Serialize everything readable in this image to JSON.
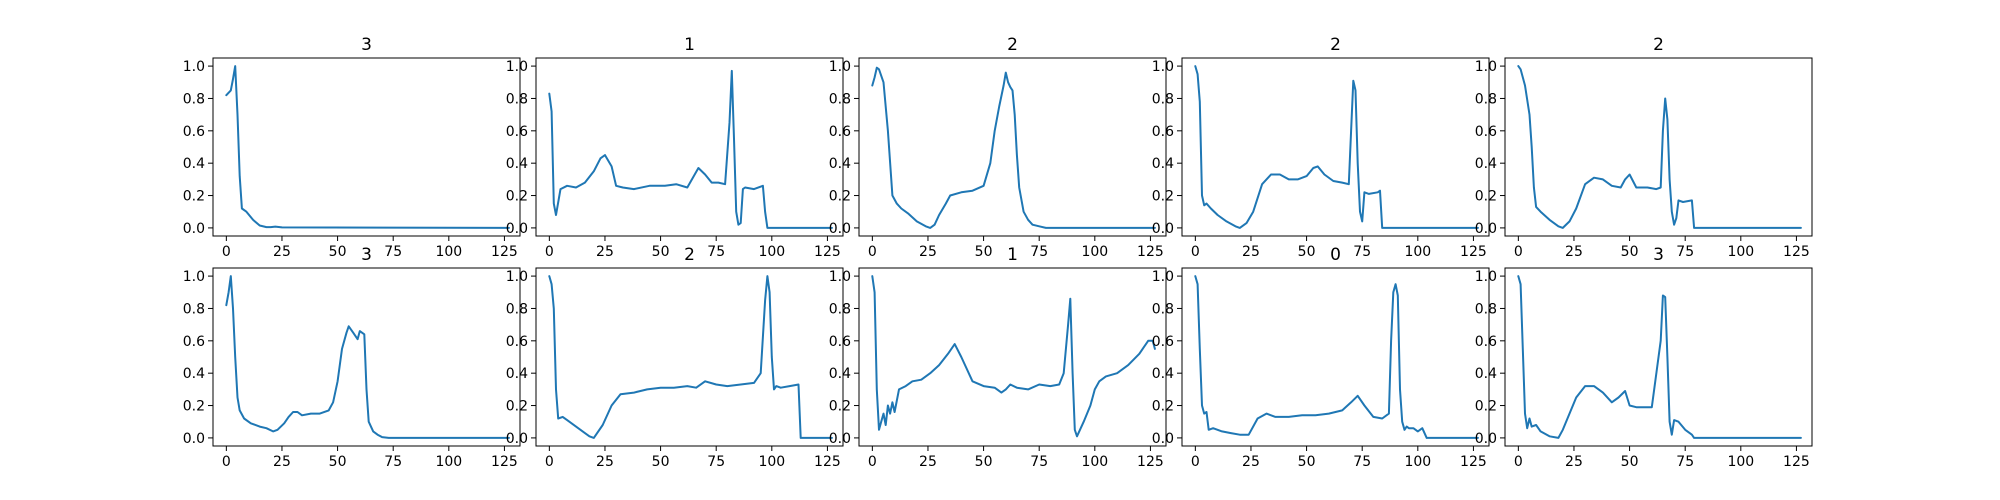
{
  "figure": {
    "background": "#ffffff",
    "line_color": "#1f77b4"
  },
  "chart_data": [
    {
      "type": "line",
      "title": "3",
      "xlabel": "",
      "ylabel": "",
      "xlim": [
        -6,
        132
      ],
      "ylim": [
        -0.05,
        1.05
      ],
      "xticks": [
        0,
        25,
        50,
        75,
        100,
        125
      ],
      "yticks": [
        0.0,
        0.2,
        0.4,
        0.6,
        0.8,
        1.0
      ],
      "series": [
        {
          "x": [
            0,
            2,
            3,
            4,
            5,
            6,
            7,
            9,
            12,
            15,
            18,
            20,
            22,
            25,
            127
          ],
          "y": [
            0.82,
            0.85,
            0.92,
            1.0,
            0.7,
            0.32,
            0.12,
            0.1,
            0.05,
            0.015,
            0.005,
            0.005,
            0.008,
            0.003,
            0.0
          ]
        }
      ]
    },
    {
      "type": "line",
      "title": "1",
      "xlabel": "",
      "ylabel": "",
      "xlim": [
        -6,
        132
      ],
      "ylim": [
        -0.05,
        1.05
      ],
      "xticks": [
        0,
        25,
        50,
        75,
        100,
        125
      ],
      "yticks": [
        0.0,
        0.2,
        0.4,
        0.6,
        0.8,
        1.0
      ],
      "series": [
        {
          "x": [
            0,
            1,
            2,
            3,
            5,
            8,
            12,
            16,
            20,
            23,
            25,
            28,
            30,
            33,
            38,
            45,
            52,
            57,
            62,
            67,
            70,
            73,
            76,
            79,
            81,
            82,
            83,
            84,
            85,
            86,
            87,
            88,
            92,
            96,
            97,
            98,
            100,
            127
          ],
          "y": [
            0.83,
            0.72,
            0.15,
            0.08,
            0.24,
            0.26,
            0.25,
            0.28,
            0.35,
            0.43,
            0.45,
            0.38,
            0.26,
            0.25,
            0.24,
            0.26,
            0.26,
            0.27,
            0.25,
            0.37,
            0.33,
            0.28,
            0.28,
            0.27,
            0.65,
            0.97,
            0.55,
            0.1,
            0.02,
            0.03,
            0.24,
            0.25,
            0.24,
            0.26,
            0.1,
            0.0,
            0.0,
            0.0
          ]
        }
      ]
    },
    {
      "type": "line",
      "title": "2",
      "xlabel": "",
      "ylabel": "",
      "xlim": [
        -6,
        132
      ],
      "ylim": [
        -0.05,
        1.05
      ],
      "xticks": [
        0,
        25,
        50,
        75,
        100,
        125
      ],
      "yticks": [
        0.0,
        0.2,
        0.4,
        0.6,
        0.8,
        1.0
      ],
      "series": [
        {
          "x": [
            0,
            1,
            2,
            3,
            5,
            7,
            9,
            11,
            13,
            16,
            20,
            24,
            26,
            28,
            30,
            33,
            35,
            40,
            45,
            50,
            53,
            55,
            57,
            59,
            60,
            61,
            62,
            63,
            64,
            65,
            66,
            68,
            70,
            72,
            75,
            78,
            127
          ],
          "y": [
            0.88,
            0.93,
            0.99,
            0.98,
            0.9,
            0.6,
            0.2,
            0.15,
            0.12,
            0.09,
            0.04,
            0.01,
            0.0,
            0.02,
            0.08,
            0.15,
            0.2,
            0.22,
            0.23,
            0.26,
            0.4,
            0.6,
            0.75,
            0.88,
            0.96,
            0.9,
            0.87,
            0.85,
            0.7,
            0.45,
            0.25,
            0.1,
            0.05,
            0.02,
            0.01,
            0.0,
            0.0
          ]
        }
      ]
    },
    {
      "type": "line",
      "title": "2",
      "xlabel": "",
      "ylabel": "",
      "xlim": [
        -6,
        132
      ],
      "ylim": [
        -0.05,
        1.05
      ],
      "xticks": [
        0,
        25,
        50,
        75,
        100,
        125
      ],
      "yticks": [
        0.0,
        0.2,
        0.4,
        0.6,
        0.8,
        1.0
      ],
      "series": [
        {
          "x": [
            0,
            1,
            2,
            3,
            4,
            5,
            7,
            10,
            14,
            18,
            20,
            23,
            26,
            30,
            34,
            38,
            42,
            46,
            50,
            53,
            55,
            58,
            62,
            66,
            69,
            70,
            71,
            72,
            73,
            74,
            75,
            76,
            78,
            82,
            83,
            84,
            85,
            127
          ],
          "y": [
            1.0,
            0.95,
            0.78,
            0.2,
            0.14,
            0.15,
            0.12,
            0.08,
            0.04,
            0.01,
            0.0,
            0.03,
            0.1,
            0.27,
            0.33,
            0.33,
            0.3,
            0.3,
            0.32,
            0.37,
            0.38,
            0.33,
            0.29,
            0.28,
            0.27,
            0.6,
            0.91,
            0.85,
            0.4,
            0.1,
            0.04,
            0.22,
            0.21,
            0.22,
            0.23,
            0.0,
            0.0,
            0.0
          ]
        }
      ]
    },
    {
      "type": "line",
      "title": "2",
      "xlabel": "",
      "ylabel": "",
      "xlim": [
        -6,
        132
      ],
      "ylim": [
        -0.05,
        1.05
      ],
      "xticks": [
        0,
        25,
        50,
        75,
        100,
        125
      ],
      "yticks": [
        0.0,
        0.2,
        0.4,
        0.6,
        0.8,
        1.0
      ],
      "series": [
        {
          "x": [
            0,
            1,
            3,
            5,
            6,
            7,
            8,
            10,
            14,
            18,
            20,
            23,
            26,
            30,
            34,
            38,
            42,
            46,
            48,
            50,
            53,
            58,
            62,
            64,
            65,
            66,
            67,
            68,
            69,
            70,
            71,
            72,
            74,
            78,
            79,
            80,
            127
          ],
          "y": [
            1.0,
            0.98,
            0.88,
            0.7,
            0.5,
            0.25,
            0.13,
            0.1,
            0.05,
            0.01,
            0.0,
            0.04,
            0.12,
            0.27,
            0.31,
            0.3,
            0.26,
            0.25,
            0.3,
            0.33,
            0.25,
            0.25,
            0.24,
            0.25,
            0.6,
            0.8,
            0.67,
            0.3,
            0.1,
            0.02,
            0.06,
            0.17,
            0.16,
            0.17,
            0.0,
            0.0,
            0.0
          ]
        }
      ]
    },
    {
      "type": "line",
      "title": "3",
      "xlabel": "",
      "ylabel": "",
      "xlim": [
        -6,
        132
      ],
      "ylim": [
        -0.05,
        1.05
      ],
      "xticks": [
        0,
        25,
        50,
        75,
        100,
        125
      ],
      "yticks": [
        0.0,
        0.2,
        0.4,
        0.6,
        0.8,
        1.0
      ],
      "series": [
        {
          "x": [
            0,
            1,
            2,
            3,
            4,
            5,
            6,
            8,
            11,
            15,
            18,
            21,
            23,
            26,
            28,
            30,
            32,
            34,
            38,
            42,
            46,
            48,
            50,
            52,
            54,
            55,
            57,
            59,
            60,
            62,
            63,
            64,
            66,
            68,
            70,
            73,
            127
          ],
          "y": [
            0.82,
            0.9,
            1.0,
            0.8,
            0.5,
            0.25,
            0.17,
            0.12,
            0.09,
            0.07,
            0.06,
            0.04,
            0.05,
            0.09,
            0.13,
            0.16,
            0.16,
            0.14,
            0.15,
            0.15,
            0.17,
            0.22,
            0.35,
            0.55,
            0.65,
            0.69,
            0.65,
            0.61,
            0.66,
            0.64,
            0.3,
            0.1,
            0.04,
            0.02,
            0.005,
            0.0,
            0.0
          ]
        }
      ]
    },
    {
      "type": "line",
      "title": "2",
      "xlabel": "",
      "ylabel": "",
      "xlim": [
        -6,
        132
      ],
      "ylim": [
        -0.05,
        1.05
      ],
      "xticks": [
        0,
        25,
        50,
        75,
        100,
        125
      ],
      "yticks": [
        0.0,
        0.2,
        0.4,
        0.6,
        0.8,
        1.0
      ],
      "series": [
        {
          "x": [
            0,
            1,
            2,
            3,
            4,
            6,
            8,
            12,
            16,
            18,
            20,
            24,
            28,
            32,
            38,
            44,
            50,
            56,
            62,
            66,
            70,
            75,
            80,
            86,
            92,
            95,
            97,
            98,
            99,
            100,
            101,
            102,
            104,
            108,
            112,
            113,
            114,
            127
          ],
          "y": [
            1.0,
            0.95,
            0.8,
            0.3,
            0.12,
            0.13,
            0.11,
            0.07,
            0.03,
            0.01,
            0.0,
            0.08,
            0.2,
            0.27,
            0.28,
            0.3,
            0.31,
            0.31,
            0.32,
            0.31,
            0.35,
            0.33,
            0.32,
            0.33,
            0.34,
            0.4,
            0.85,
            1.0,
            0.9,
            0.5,
            0.3,
            0.32,
            0.31,
            0.32,
            0.33,
            0.0,
            0.0,
            0.0
          ]
        }
      ]
    },
    {
      "type": "line",
      "title": "1",
      "xlabel": "",
      "ylabel": "",
      "xlim": [
        -6,
        132
      ],
      "ylim": [
        -0.05,
        1.05
      ],
      "xticks": [
        0,
        25,
        50,
        75,
        100,
        125
      ],
      "yticks": [
        0.0,
        0.2,
        0.4,
        0.6,
        0.8,
        1.0
      ],
      "series": [
        {
          "x": [
            0,
            1,
            2,
            3,
            4,
            5,
            6,
            7,
            8,
            9,
            10,
            12,
            15,
            18,
            22,
            26,
            30,
            34,
            37,
            40,
            45,
            50,
            55,
            58,
            60,
            62,
            65,
            70,
            75,
            80,
            84,
            86,
            88,
            89,
            90,
            91,
            92,
            95,
            98,
            100,
            102,
            105,
            110,
            115,
            120,
            124,
            126,
            127
          ],
          "y": [
            1.0,
            0.9,
            0.3,
            0.05,
            0.1,
            0.15,
            0.08,
            0.2,
            0.15,
            0.22,
            0.16,
            0.3,
            0.32,
            0.35,
            0.36,
            0.4,
            0.45,
            0.52,
            0.58,
            0.5,
            0.35,
            0.32,
            0.31,
            0.28,
            0.3,
            0.33,
            0.31,
            0.3,
            0.33,
            0.32,
            0.33,
            0.4,
            0.7,
            0.86,
            0.4,
            0.05,
            0.01,
            0.1,
            0.2,
            0.3,
            0.35,
            0.38,
            0.4,
            0.45,
            0.52,
            0.6,
            0.6,
            0.55
          ]
        }
      ]
    },
    {
      "type": "line",
      "title": "0",
      "xlabel": "",
      "ylabel": "",
      "xlim": [
        -6,
        132
      ],
      "ylim": [
        -0.05,
        1.05
      ],
      "xticks": [
        0,
        25,
        50,
        75,
        100,
        125
      ],
      "yticks": [
        0.0,
        0.2,
        0.4,
        0.6,
        0.8,
        1.0
      ],
      "series": [
        {
          "x": [
            0,
            1,
            2,
            3,
            4,
            5,
            6,
            8,
            12,
            16,
            20,
            24,
            28,
            32,
            36,
            42,
            48,
            54,
            60,
            66,
            70,
            73,
            76,
            80,
            84,
            87,
            88,
            89,
            90,
            91,
            92,
            93,
            94,
            95,
            96,
            98,
            100,
            102,
            104,
            127
          ],
          "y": [
            1.0,
            0.95,
            0.55,
            0.2,
            0.15,
            0.16,
            0.05,
            0.06,
            0.04,
            0.03,
            0.02,
            0.02,
            0.12,
            0.15,
            0.13,
            0.13,
            0.14,
            0.14,
            0.15,
            0.17,
            0.22,
            0.26,
            0.2,
            0.13,
            0.12,
            0.15,
            0.6,
            0.9,
            0.95,
            0.88,
            0.3,
            0.1,
            0.05,
            0.07,
            0.06,
            0.06,
            0.04,
            0.06,
            0.0,
            0.0
          ]
        }
      ]
    },
    {
      "type": "line",
      "title": "3",
      "xlabel": "",
      "ylabel": "",
      "xlim": [
        -6,
        132
      ],
      "ylim": [
        -0.05,
        1.05
      ],
      "xticks": [
        0,
        25,
        50,
        75,
        100,
        125
      ],
      "yticks": [
        0.0,
        0.2,
        0.4,
        0.6,
        0.8,
        1.0
      ],
      "series": [
        {
          "x": [
            0,
            1,
            2,
            3,
            4,
            5,
            6,
            8,
            10,
            14,
            18,
            20,
            23,
            26,
            30,
            34,
            38,
            42,
            45,
            48,
            50,
            53,
            56,
            60,
            64,
            65,
            66,
            67,
            68,
            69,
            70,
            72,
            75,
            78,
            79,
            80,
            127
          ],
          "y": [
            1.0,
            0.95,
            0.55,
            0.15,
            0.06,
            0.12,
            0.07,
            0.08,
            0.04,
            0.01,
            0.0,
            0.05,
            0.15,
            0.25,
            0.32,
            0.32,
            0.28,
            0.22,
            0.25,
            0.29,
            0.2,
            0.19,
            0.19,
            0.19,
            0.6,
            0.88,
            0.87,
            0.5,
            0.1,
            0.02,
            0.11,
            0.1,
            0.05,
            0.02,
            0.0,
            0.0,
            0.0
          ]
        }
      ]
    }
  ]
}
